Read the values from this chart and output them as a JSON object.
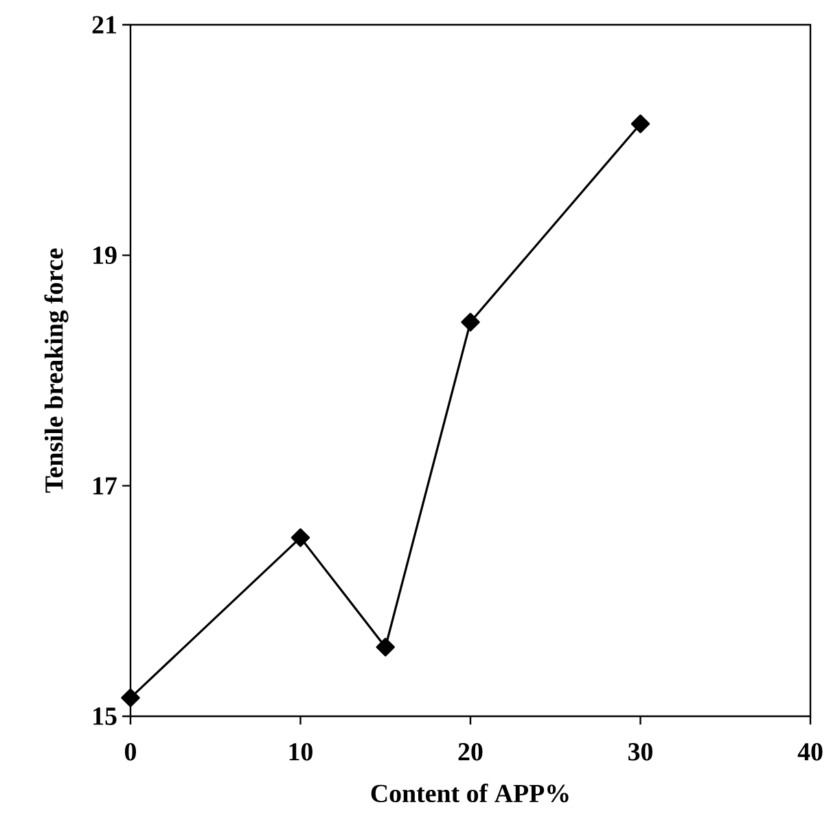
{
  "chart_data": {
    "type": "line",
    "xlabel": "Content of APP%",
    "ylabel": "Tensile breaking force",
    "x": [
      0,
      10,
      15,
      20,
      30
    ],
    "series": [
      {
        "color": "#000000",
        "values": [
          15.16,
          16.55,
          15.6,
          18.42,
          20.14
        ]
      }
    ],
    "xlim": [
      0,
      40
    ],
    "xticks": [
      0,
      10,
      20,
      30,
      40
    ],
    "ylim": [
      15,
      21
    ],
    "yticks": [
      15,
      17,
      19,
      21
    ],
    "marker": "diamond",
    "line_style": "solid"
  }
}
